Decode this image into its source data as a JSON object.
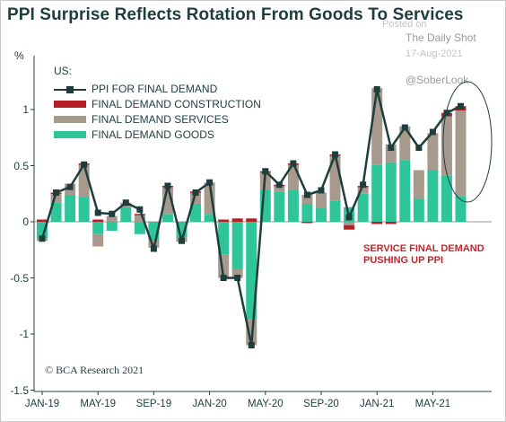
{
  "title": "PPI Surprise Reflects Rotation From Goods To Services",
  "watermark": {
    "posted": "Posted on",
    "source": "The Daily Shot",
    "date": "17-Aug-2021",
    "handle": "@SoberLook"
  },
  "credit": "© BCA Research 2021",
  "annotation": [
    "SERVICE FINAL DEMAND",
    "PUSHING UP PPI"
  ],
  "colors": {
    "goods": "#2fc59a",
    "services": "#a8998d",
    "construction": "#b81f25",
    "ppi": "#1f3d3d",
    "annotation": "#c0272d"
  },
  "chart_data": {
    "type": "bar",
    "title": "PPI Surprise Reflects Rotation From Goods To Services",
    "ylabel": "%",
    "ylim": [
      -1.5,
      1.5
    ],
    "yticks": [
      -1.5,
      -1,
      -0.5,
      0,
      0.5,
      1
    ],
    "yticklabels": [
      "-1.5",
      "-1",
      "-0.5",
      "0",
      "0.5",
      "1"
    ],
    "legend_title": "US:",
    "legend_placement": "top-left",
    "xticklabels": [
      "JAN-19",
      "MAY-19",
      "SEP-19",
      "JAN-20",
      "MAY-20",
      "SEP-20",
      "JAN-21",
      "MAY-21"
    ],
    "xtick_index": [
      0,
      4,
      8,
      12,
      16,
      20,
      24,
      28
    ],
    "categories": [
      "Jan-19",
      "Feb-19",
      "Mar-19",
      "Apr-19",
      "May-19",
      "Jun-19",
      "Jul-19",
      "Aug-19",
      "Sep-19",
      "Oct-19",
      "Nov-19",
      "Dec-19",
      "Jan-20",
      "Feb-20",
      "Mar-20",
      "Apr-20",
      "May-20",
      "Jun-20",
      "Jul-20",
      "Aug-20",
      "Sep-20",
      "Oct-20",
      "Nov-20",
      "Dec-20",
      "Jan-21",
      "Feb-21",
      "Mar-21",
      "Apr-21",
      "May-21",
      "Jun-21",
      "Jul-21"
    ],
    "series": [
      {
        "name": "PPI FOR FINAL DEMAND",
        "kind": "line",
        "values": [
          -0.15,
          0.26,
          0.31,
          0.51,
          0.08,
          0.07,
          0.17,
          0.11,
          -0.24,
          0.32,
          -0.17,
          0.26,
          0.35,
          -0.5,
          -0.5,
          -1.1,
          0.45,
          0.33,
          0.52,
          0.24,
          0.28,
          0.6,
          0.04,
          0.33,
          1.18,
          0.66,
          0.84,
          0.66,
          0.8,
          0.97,
          1.03
        ]
      },
      {
        "name": "FINAL DEMAND CONSTRUCTION",
        "kind": "bar",
        "values": [
          0.02,
          0.01,
          0.0,
          0.01,
          0.02,
          0.0,
          0.0,
          0.01,
          0.0,
          0.01,
          0.0,
          0.01,
          0.0,
          0.02,
          0.03,
          0.03,
          0.01,
          0.01,
          0.01,
          -0.01,
          0.0,
          0.01,
          -0.04,
          0.01,
          -0.02,
          -0.02,
          0.0,
          0.0,
          0.0,
          0.03,
          0.04
        ]
      },
      {
        "name": "FINAL DEMAND SERVICES",
        "kind": "bar",
        "values": [
          -0.02,
          0.08,
          0.1,
          0.29,
          -0.11,
          0.05,
          0.04,
          0.06,
          -0.07,
          0.24,
          -0.04,
          0.1,
          0.28,
          -0.21,
          -0.08,
          -0.23,
          0.16,
          0.05,
          0.23,
          0.08,
          0.14,
          0.4,
          -0.03,
          0.06,
          0.68,
          0.16,
          0.3,
          0.26,
          0.33,
          0.53,
          0.76
        ]
      },
      {
        "name": "FINAL DEMAND GOODS",
        "kind": "bar",
        "values": [
          -0.15,
          0.17,
          0.24,
          0.22,
          -0.11,
          -0.08,
          0.13,
          -0.11,
          -0.16,
          0.07,
          -0.14,
          0.16,
          0.07,
          -0.29,
          -0.42,
          -0.87,
          0.28,
          0.27,
          0.28,
          0.16,
          0.12,
          0.19,
          0.13,
          0.25,
          0.51,
          0.53,
          0.55,
          0.2,
          0.46,
          0.41,
          0.23
        ]
      }
    ]
  }
}
